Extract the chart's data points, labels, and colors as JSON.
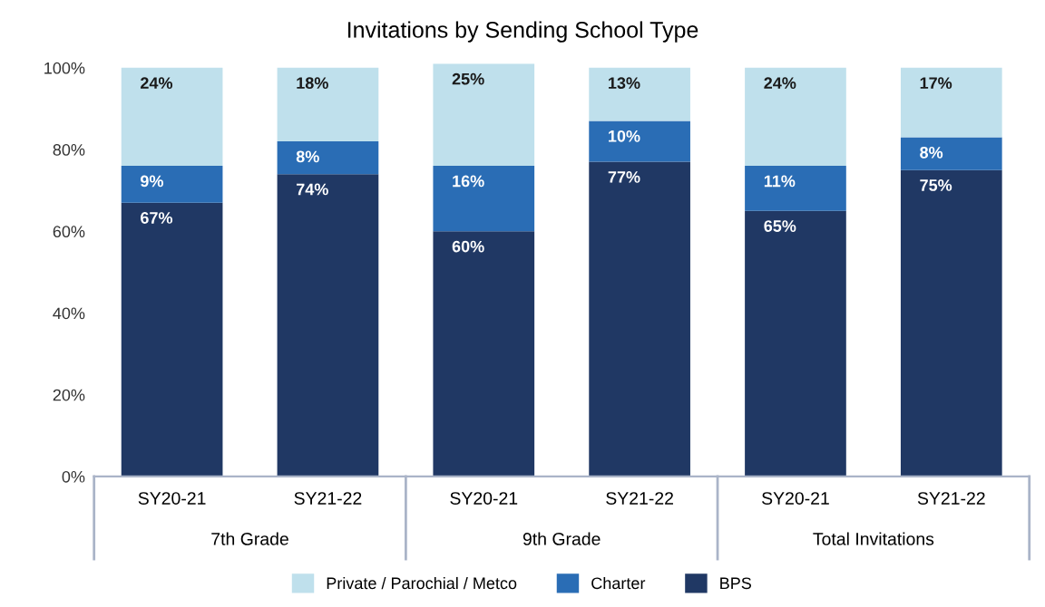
{
  "chart_data": {
    "type": "bar",
    "title": "Invitations by Sending School Type",
    "categories": [
      "SY20-21",
      "SY21-22",
      "SY20-21",
      "SY21-22",
      "SY20-21",
      "SY21-22"
    ],
    "series": [
      {
        "name": "BPS",
        "color": "#203864",
        "values": [
          67,
          74,
          60,
          77,
          65,
          75
        ],
        "value_labels": [
          "67%",
          "74%",
          "60%",
          "77%",
          "65%",
          "75%"
        ]
      },
      {
        "name": "Charter",
        "color": "#2a6db5",
        "values": [
          9,
          8,
          16,
          10,
          11,
          8
        ],
        "value_labels": [
          "9%",
          "8%",
          "16%",
          "10%",
          "11%",
          "8%"
        ]
      },
      {
        "name": "Private / Parochial / Metco",
        "color": "#bfe0ec",
        "values": [
          24,
          18,
          25,
          13,
          24,
          17
        ],
        "value_labels": [
          "24%",
          "18%",
          "25%",
          "13%",
          "24%",
          "17%"
        ]
      }
    ],
    "stacked": true,
    "ylim": [
      0,
      101
    ],
    "yticks": [
      {
        "value": 0,
        "label": "0%"
      },
      {
        "value": 20,
        "label": "20%"
      },
      {
        "value": 40,
        "label": "40%"
      },
      {
        "value": 60,
        "label": "60%"
      },
      {
        "value": 80,
        "label": "80%"
      },
      {
        "value": 100,
        "label": "100%"
      }
    ],
    "annotations": [
      "7th Grade",
      "9th Grade",
      "Total Invitations"
    ],
    "grid": false,
    "legend": "bottom"
  }
}
